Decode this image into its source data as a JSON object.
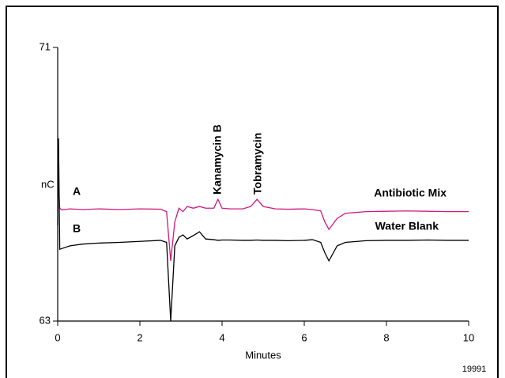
{
  "chart_data": {
    "type": "line",
    "ylabel": "nC",
    "xlabel": "Minutes",
    "code": "19991",
    "xlim": [
      0,
      10
    ],
    "xticks": [
      0,
      2,
      4,
      6,
      8,
      10
    ],
    "ylim": [
      63,
      71
    ],
    "yticks": [
      63,
      71
    ],
    "x": [
      0,
      0.02,
      0.05,
      0.1,
      0.3,
      0.6,
      1.0,
      1.5,
      2.0,
      2.5,
      2.65,
      2.75,
      2.85,
      2.95,
      3.05,
      3.15,
      3.3,
      3.45,
      3.6,
      3.8,
      3.9,
      4.0,
      4.2,
      4.5,
      4.7,
      4.85,
      5.0,
      5.3,
      5.6,
      6.0,
      6.2,
      6.4,
      6.5,
      6.6,
      6.8,
      7.0,
      7.5,
      8.0,
      8.5,
      9.0,
      9.5,
      10
    ],
    "series": [
      {
        "name": "Antibiotic Mix",
        "label": "A",
        "color": "#d0197f",
        "values": [
          66.3,
          67.1,
          66.3,
          66.25,
          66.28,
          66.26,
          66.28,
          66.26,
          66.28,
          66.27,
          66.2,
          64.76,
          65.9,
          66.3,
          66.2,
          66.35,
          66.3,
          66.35,
          66.3,
          66.3,
          66.56,
          66.3,
          66.28,
          66.28,
          66.35,
          66.56,
          66.35,
          66.28,
          66.27,
          66.28,
          66.26,
          66.22,
          65.9,
          65.68,
          66.0,
          66.15,
          66.2,
          66.21,
          66.22,
          66.21,
          66.2,
          66.2
        ]
      },
      {
        "name": "Water Blank",
        "label": "B",
        "color": "#000000",
        "values": [
          65.8,
          68.34,
          65.1,
          65.12,
          65.2,
          65.25,
          65.28,
          65.3,
          65.33,
          65.36,
          65.3,
          63.0,
          65.2,
          65.45,
          65.52,
          65.4,
          65.5,
          65.61,
          65.4,
          65.38,
          65.36,
          65.37,
          65.37,
          65.36,
          65.36,
          65.37,
          65.36,
          65.36,
          65.35,
          65.36,
          65.38,
          65.3,
          65.0,
          64.76,
          65.2,
          65.3,
          65.35,
          65.36,
          65.36,
          65.37,
          65.36,
          65.36
        ]
      }
    ],
    "annotations": [
      "Kanamycin B",
      "Tobramycin"
    ]
  }
}
